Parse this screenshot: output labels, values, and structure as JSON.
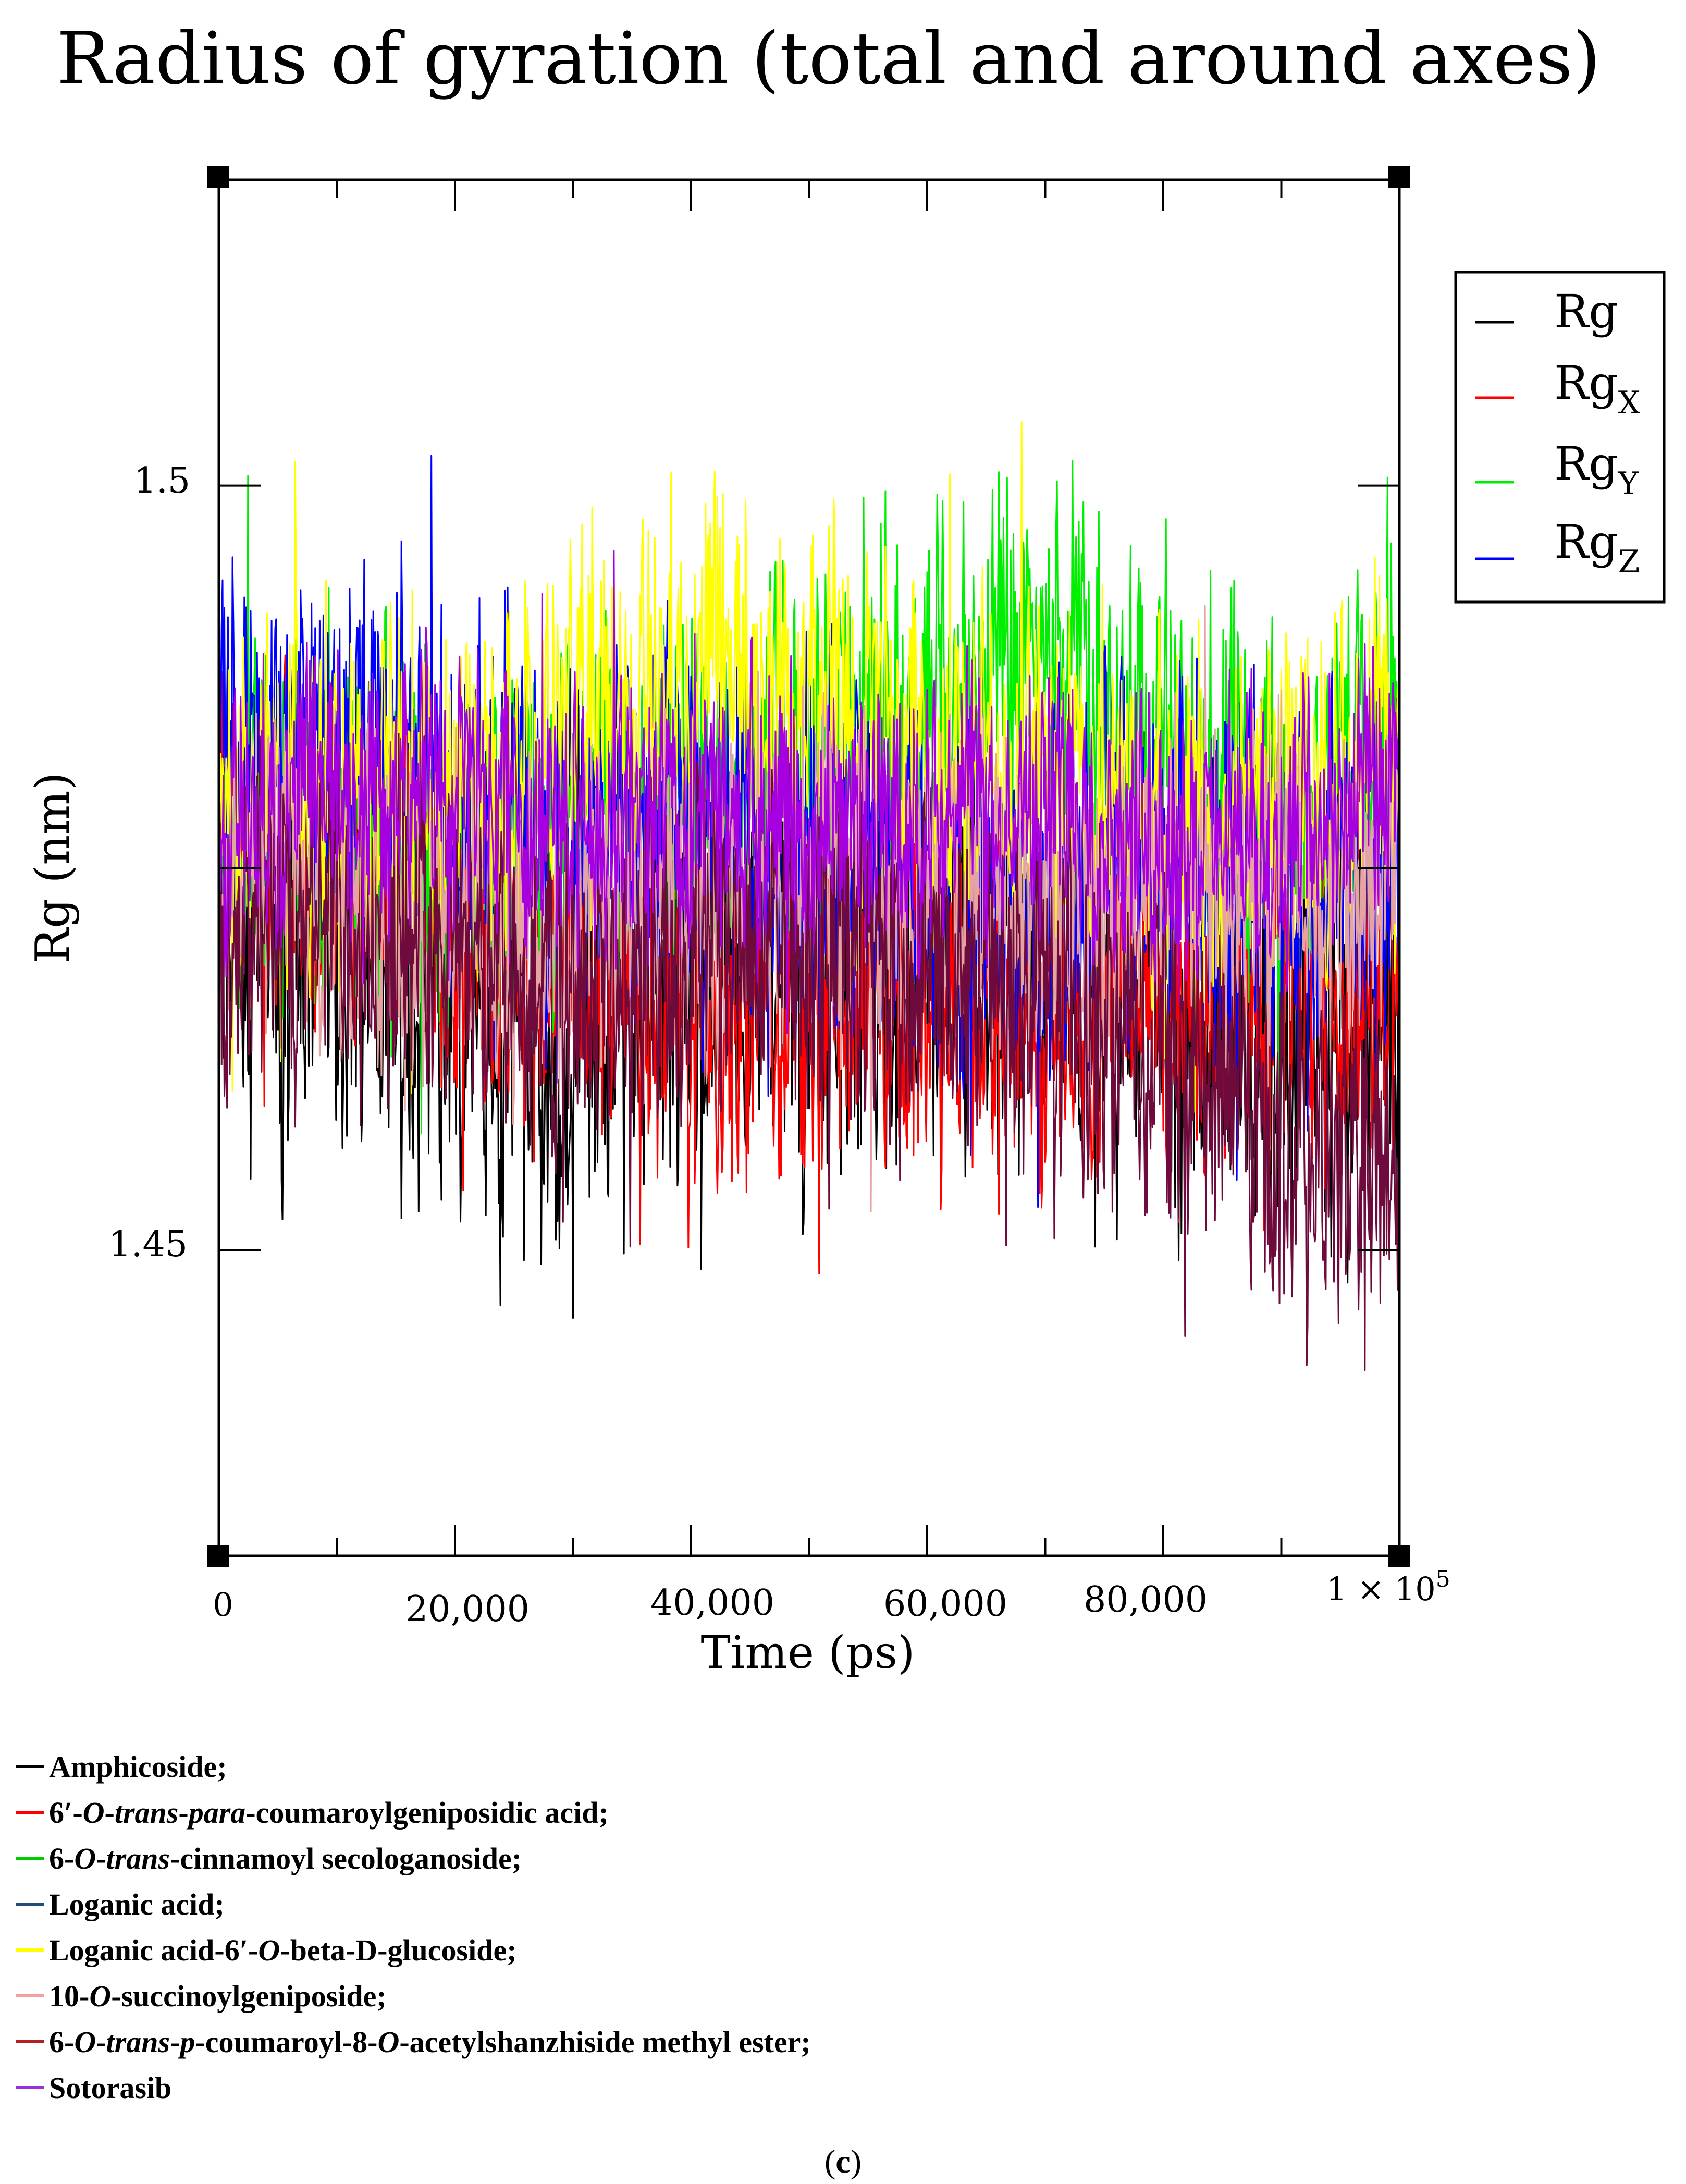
{
  "chart_data": {
    "type": "line",
    "title": "Radius of gyration (total and around axes)",
    "xlabel": "Time (ps)",
    "ylabel": "Rg (nm)",
    "xlim": [
      0,
      100000
    ],
    "ylim": [
      1.43,
      1.52
    ],
    "x_ticks": [
      0,
      20000,
      40000,
      60000,
      80000,
      100000
    ],
    "x_tick_labels": [
      "0",
      "20,000",
      "40,000",
      "60,000",
      "80,000",
      "1 × 10"
    ],
    "x_tick_last_superscript": "5",
    "y_ticks": [
      1.45,
      1.5
    ],
    "y_tick_labels": [
      "1.45",
      "1.5"
    ],
    "inner_legend": {
      "position": "right-outside-top",
      "entries": [
        {
          "label": "Rg",
          "subscript": "",
          "color": "#000000"
        },
        {
          "label": "Rg",
          "subscript": "X",
          "color": "#ff0000"
        },
        {
          "label": "Rg",
          "subscript": "Y",
          "color": "#00ee00"
        },
        {
          "label": "Rg",
          "subscript": "Z",
          "color": "#0000ff"
        }
      ]
    },
    "series": [
      {
        "name": "Amphicoside",
        "color": "#000000",
        "mean": 1.467,
        "band": 0.015,
        "x": [
          0,
          10000,
          20000,
          30000,
          40000,
          50000,
          60000,
          70000,
          80000,
          90000,
          100000
        ],
        "values": [
          1.47,
          1.472,
          1.465,
          1.462,
          1.468,
          1.468,
          1.47,
          1.468,
          1.467,
          1.466,
          1.465
        ]
      },
      {
        "name": "6′-O-trans-para-coumaroylgeniposidic acid",
        "color": "#ff0000",
        "mean": 1.467,
        "band": 0.012,
        "x": [
          0,
          10000,
          20000,
          30000,
          40000,
          50000,
          60000,
          70000,
          80000,
          90000,
          100000
        ],
        "values": [
          1.48,
          1.474,
          1.471,
          1.469,
          1.465,
          1.465,
          1.467,
          1.465,
          1.467,
          1.466,
          1.467
        ]
      },
      {
        "name": "6-O-trans-cinnamoyl secologanoside",
        "color": "#00ee00",
        "mean": 1.482,
        "band": 0.013,
        "x": [
          0,
          10000,
          20000,
          30000,
          40000,
          50000,
          60000,
          70000,
          80000,
          90000,
          100000
        ],
        "values": [
          1.478,
          1.48,
          1.476,
          1.478,
          1.48,
          1.484,
          1.486,
          1.488,
          1.482,
          1.478,
          1.483
        ]
      },
      {
        "name": "Loganic acid",
        "color": "#0000ff",
        "mean": 1.477,
        "band": 0.014,
        "x": [
          0,
          10000,
          20000,
          30000,
          40000,
          50000,
          60000,
          70000,
          80000,
          90000,
          100000
        ],
        "values": [
          1.482,
          1.484,
          1.48,
          1.477,
          1.478,
          1.476,
          1.476,
          1.474,
          1.475,
          1.474,
          1.474
        ]
      },
      {
        "name": "Loganic acid-6′-O-beta-D-glucoside",
        "color": "#ffff00",
        "mean": 1.481,
        "band": 0.013,
        "x": [
          0,
          10000,
          20000,
          30000,
          40000,
          50000,
          60000,
          70000,
          80000,
          90000,
          100000
        ],
        "values": [
          1.478,
          1.479,
          1.478,
          1.485,
          1.488,
          1.486,
          1.482,
          1.482,
          1.478,
          1.48,
          1.481
        ]
      },
      {
        "name": "10-O-succinoylgeniposide",
        "color": "#e6a3a3",
        "mean": 1.472,
        "band": 0.012,
        "x": [
          0,
          10000,
          20000,
          30000,
          40000,
          50000,
          60000,
          70000,
          80000,
          90000,
          100000
        ],
        "values": [
          1.475,
          1.474,
          1.471,
          1.47,
          1.472,
          1.474,
          1.473,
          1.472,
          1.474,
          1.474,
          1.474
        ]
      },
      {
        "name": "6-O-trans-p-coumaroyl-8-O-acetylshanzhiside methyl ester",
        "color": "#6e0a3c",
        "mean": 1.467,
        "band": 0.012,
        "x": [
          0,
          10000,
          20000,
          30000,
          40000,
          50000,
          60000,
          70000,
          80000,
          90000,
          100000
        ],
        "values": [
          1.47,
          1.473,
          1.47,
          1.468,
          1.469,
          1.47,
          1.468,
          1.466,
          1.462,
          1.457,
          1.455
        ]
      },
      {
        "name": "Sotorasib",
        "color": "#a600e0",
        "mean": 1.479,
        "band": 0.01,
        "x": [
          0,
          10000,
          20000,
          30000,
          40000,
          50000,
          60000,
          70000,
          80000,
          90000,
          100000
        ],
        "values": [
          1.478,
          1.48,
          1.48,
          1.478,
          1.48,
          1.479,
          1.478,
          1.479,
          1.477,
          1.477,
          1.48
        ]
      }
    ]
  },
  "caption_legend": {
    "items": [
      {
        "color": "#000000",
        "parts": [
          {
            "t": "Amphicoside;",
            "s": "b"
          }
        ]
      },
      {
        "color": "#ff0000",
        "parts": [
          {
            "t": "6′-",
            "s": "b"
          },
          {
            "t": "O",
            "s": "i"
          },
          {
            "t": "-",
            "s": "b"
          },
          {
            "t": "trans",
            "s": "i"
          },
          {
            "t": "-",
            "s": "b"
          },
          {
            "t": "para",
            "s": "i"
          },
          {
            "t": "-coumaroylgeniposidic acid;",
            "s": "b"
          }
        ]
      },
      {
        "color": "#00cc00",
        "parts": [
          {
            "t": "6-",
            "s": "b"
          },
          {
            "t": "O",
            "s": "i"
          },
          {
            "t": "-",
            "s": "b"
          },
          {
            "t": "trans",
            "s": "i"
          },
          {
            "t": "-cinnamoyl secologanoside;",
            "s": "b"
          }
        ]
      },
      {
        "color": "#1f4e79",
        "parts": [
          {
            "t": "Loganic acid;",
            "s": "b"
          }
        ]
      },
      {
        "color": "#ffff00",
        "parts": [
          {
            "t": "Loganic acid-6′-",
            "s": "b"
          },
          {
            "t": "O",
            "s": "i"
          },
          {
            "t": "-beta-",
            "s": "b"
          },
          {
            "t": "D",
            "s": "sc"
          },
          {
            "t": "-glucoside;",
            "s": "b"
          }
        ]
      },
      {
        "color": "#f4a0a0",
        "parts": [
          {
            "t": "10-",
            "s": "b"
          },
          {
            "t": "O",
            "s": "i"
          },
          {
            "t": "-succinoylgeniposide;",
            "s": "b"
          }
        ]
      },
      {
        "color": "#b22222",
        "parts": [
          {
            "t": "6-",
            "s": "b"
          },
          {
            "t": "O",
            "s": "i"
          },
          {
            "t": "-",
            "s": "b"
          },
          {
            "t": "trans",
            "s": "i"
          },
          {
            "t": "-",
            "s": "b"
          },
          {
            "t": "p",
            "s": "i"
          },
          {
            "t": "-coumaroyl-8-",
            "s": "b"
          },
          {
            "t": "O",
            "s": "i"
          },
          {
            "t": "-acetylshanzhiside methyl ester;",
            "s": "b"
          }
        ]
      },
      {
        "color": "#9b30d9",
        "parts": [
          {
            "t": "Sotorasib",
            "s": "b"
          }
        ]
      }
    ]
  },
  "panel_label": {
    "open": "(",
    "letter": "c",
    "close": ")"
  }
}
